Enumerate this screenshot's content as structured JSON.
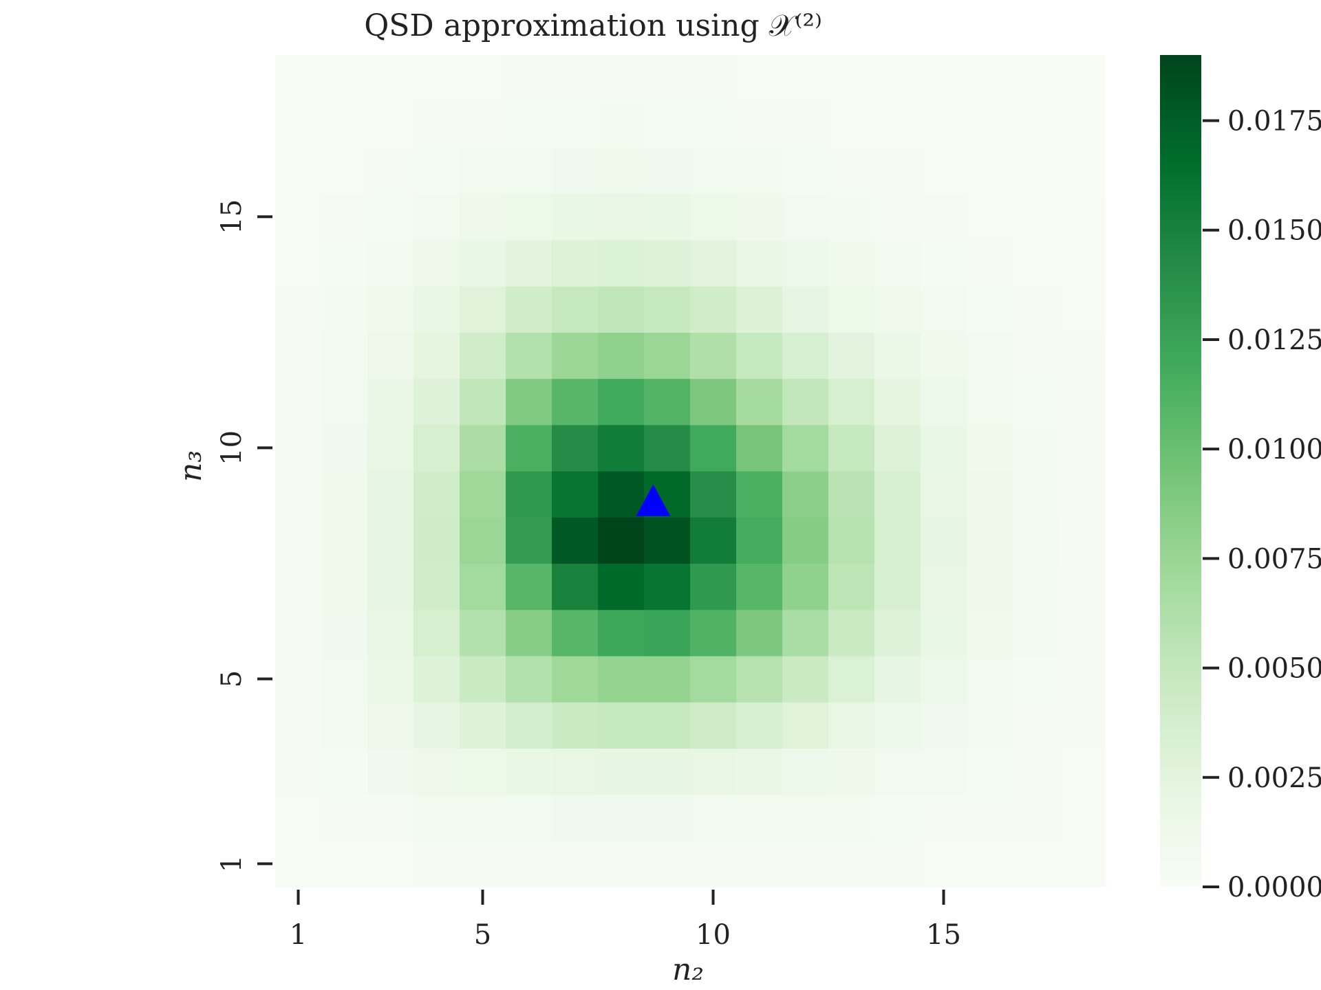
{
  "chart_data": {
    "type": "heatmap",
    "title": "QSD approximation using 𝒳⁽²⁾",
    "xlabel": "n₂",
    "ylabel": "n₃",
    "x_range": [
      1,
      18
    ],
    "y_range": [
      1,
      18
    ],
    "x_ticks": [
      1,
      5,
      10,
      15
    ],
    "y_ticks": [
      1,
      5,
      10,
      15
    ],
    "colormap": "Greens",
    "colorbar": {
      "min": 0.0,
      "max": 0.019,
      "ticks": [
        0.0,
        0.0025,
        0.005,
        0.0075,
        0.01,
        0.0125,
        0.015,
        0.0175
      ],
      "tick_labels": [
        "0.0000",
        "0.0025",
        "0.0050",
        "0.0075",
        "0.0100",
        "0.0125",
        "0.0150",
        "0.0175"
      ]
    },
    "values": [
      [
        0.0001,
        0.0001,
        0.0001,
        0.0002,
        0.0002,
        0.0002,
        0.0003,
        0.0003,
        0.0003,
        0.0003,
        0.0003,
        0.0002,
        0.0002,
        0.0002,
        0.0001,
        0.0001,
        0.0001,
        0.0001
      ],
      [
        0.0001,
        0.0002,
        0.0003,
        0.0006,
        0.0007,
        0.0008,
        0.0009,
        0.0009,
        0.0009,
        0.0008,
        0.0007,
        0.0006,
        0.0005,
        0.0004,
        0.0003,
        0.0002,
        0.0002,
        0.0001
      ],
      [
        0.0002,
        0.0004,
        0.0009,
        0.0012,
        0.0015,
        0.0018,
        0.002,
        0.0022,
        0.0021,
        0.002,
        0.0017,
        0.0014,
        0.0011,
        0.0008,
        0.0006,
        0.0004,
        0.0002,
        0.0001
      ],
      [
        0.0002,
        0.0006,
        0.0012,
        0.0022,
        0.003,
        0.0038,
        0.0045,
        0.0048,
        0.0048,
        0.0043,
        0.0036,
        0.0028,
        0.002,
        0.0014,
        0.0009,
        0.0006,
        0.0003,
        0.0002
      ],
      [
        0.0003,
        0.0008,
        0.0016,
        0.003,
        0.0045,
        0.006,
        0.0072,
        0.0078,
        0.0078,
        0.007,
        0.0058,
        0.0045,
        0.0032,
        0.0022,
        0.0014,
        0.0008,
        0.0004,
        0.0002
      ],
      [
        0.0003,
        0.0009,
        0.0019,
        0.0036,
        0.006,
        0.0085,
        0.0108,
        0.0122,
        0.0124,
        0.0112,
        0.009,
        0.0066,
        0.0045,
        0.003,
        0.0018,
        0.001,
        0.0005,
        0.0003
      ],
      [
        0.0003,
        0.001,
        0.0021,
        0.004,
        0.007,
        0.0108,
        0.015,
        0.0168,
        0.016,
        0.0132,
        0.0108,
        0.008,
        0.0054,
        0.0034,
        0.002,
        0.0011,
        0.0005,
        0.0003
      ],
      [
        0.0003,
        0.001,
        0.0022,
        0.0042,
        0.0075,
        0.013,
        0.0178,
        0.019,
        0.0182,
        0.0155,
        0.0118,
        0.0086,
        0.0058,
        0.0036,
        0.0021,
        0.0012,
        0.0006,
        0.0003
      ],
      [
        0.0003,
        0.001,
        0.0021,
        0.004,
        0.0072,
        0.0132,
        0.016,
        0.0178,
        0.0168,
        0.014,
        0.0114,
        0.0082,
        0.0056,
        0.0034,
        0.002,
        0.0011,
        0.0005,
        0.0003
      ],
      [
        0.0003,
        0.0009,
        0.002,
        0.0036,
        0.0065,
        0.0114,
        0.0142,
        0.0154,
        0.0142,
        0.012,
        0.0094,
        0.007,
        0.0048,
        0.003,
        0.0018,
        0.001,
        0.0005,
        0.0003
      ],
      [
        0.0002,
        0.0008,
        0.0017,
        0.003,
        0.0052,
        0.0088,
        0.0108,
        0.012,
        0.011,
        0.009,
        0.0068,
        0.005,
        0.0036,
        0.0024,
        0.0014,
        0.0008,
        0.0004,
        0.0002
      ],
      [
        0.0002,
        0.0007,
        0.0013,
        0.0024,
        0.004,
        0.006,
        0.0074,
        0.008,
        0.0075,
        0.0062,
        0.0048,
        0.0035,
        0.0025,
        0.0016,
        0.001,
        0.0006,
        0.0003,
        0.0002
      ],
      [
        0.0002,
        0.0005,
        0.001,
        0.0018,
        0.0028,
        0.004,
        0.0048,
        0.0052,
        0.0048,
        0.004,
        0.0031,
        0.0022,
        0.0015,
        0.001,
        0.0006,
        0.0004,
        0.0002,
        0.0001
      ],
      [
        0.0001,
        0.0004,
        0.0007,
        0.0012,
        0.0018,
        0.0025,
        0.003,
        0.0032,
        0.003,
        0.0026,
        0.0019,
        0.0014,
        0.001,
        0.0006,
        0.0004,
        0.0002,
        0.0001,
        0.0001
      ],
      [
        0.0001,
        0.0002,
        0.0004,
        0.0007,
        0.0011,
        0.0015,
        0.0018,
        0.0019,
        0.0018,
        0.0015,
        0.0011,
        0.0008,
        0.0005,
        0.0003,
        0.0002,
        0.0001,
        0.0001,
        0.0001
      ],
      [
        0.0001,
        0.0001,
        0.0002,
        0.0004,
        0.0006,
        0.0008,
        0.0009,
        0.001,
        0.0009,
        0.0008,
        0.0006,
        0.0004,
        0.0003,
        0.0002,
        0.0001,
        0.0001,
        0.0,
        0.0
      ],
      [
        0.0,
        0.0001,
        0.0001,
        0.0002,
        0.0003,
        0.0004,
        0.0004,
        0.0005,
        0.0004,
        0.0004,
        0.0003,
        0.0002,
        0.0001,
        0.0001,
        0.0001,
        0.0,
        0.0,
        0.0
      ],
      [
        0.0,
        0.0,
        0.0001,
        0.0001,
        0.0001,
        0.0002,
        0.0002,
        0.0002,
        0.0002,
        0.0002,
        0.0001,
        0.0001,
        0.0001,
        0.0,
        0.0,
        0.0,
        0.0,
        0.0
      ]
    ],
    "marker": {
      "shape": "triangle",
      "color": "#0000ff",
      "x": 8.7,
      "y": 8.8
    },
    "grid": false
  }
}
